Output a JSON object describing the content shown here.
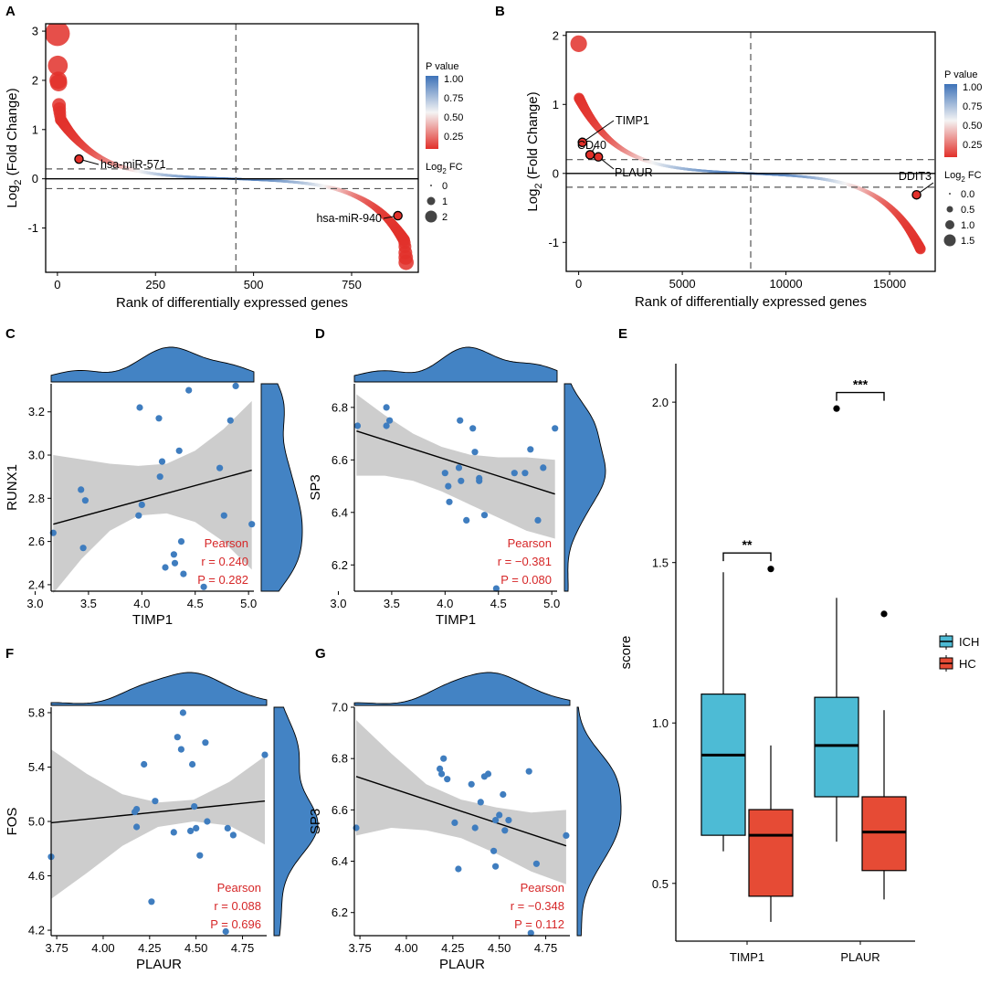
{
  "panels": {
    "A": {
      "label": "A"
    },
    "B": {
      "label": "B"
    },
    "C": {
      "label": "C"
    },
    "D": {
      "label": "D"
    },
    "E": {
      "label": "E"
    },
    "F": {
      "label": "F"
    },
    "G": {
      "label": "G"
    }
  },
  "colors": {
    "red": "#e2302a",
    "white": "#f4f4f4",
    "blue": "#3d72b8",
    "scatter_point": "#3f7dbf",
    "density_fill": "#4383c4",
    "ci_band": "#c8c8c8",
    "stat_text": "#d62728",
    "box_ich": "#4dbbd5",
    "box_hc": "#e64b35"
  },
  "chart_data": [
    {
      "id": "A",
      "type": "scatter",
      "title": "",
      "xlabel": "Rank of differentially expressed genes",
      "ylabel_main": "Log",
      "ylabel_sub": "2",
      "ylabel_tail": " (Fold Change)",
      "xlim": [
        -30,
        920
      ],
      "ylim": [
        -1.9,
        3.15
      ],
      "xticks": [
        0,
        250,
        500,
        750
      ],
      "yticks": [
        -1,
        0,
        1,
        2,
        3
      ],
      "hlines_dashed": [
        0.2,
        -0.2
      ],
      "hline_solid": 0,
      "vline_dashed": 455,
      "n_genes": 890,
      "top_values": [
        2.95,
        2.3,
        2.0,
        1.95,
        1.5,
        1.42,
        1.35,
        1.28,
        1.2
      ],
      "bottom_values": [
        -1.25,
        -1.3,
        -1.38,
        -1.5,
        -1.6,
        -1.7
      ],
      "highlight": [
        {
          "x": 55,
          "y": 0.4,
          "label": "hsa-miR-571"
        },
        {
          "x": 868,
          "y": -0.75,
          "label": "hsa-miR-940"
        }
      ],
      "legend": {
        "pvalue_title": "P value",
        "pvalue_ticks": [
          "1.00",
          "0.75",
          "0.50",
          "0.25"
        ],
        "fc_title_main": "Log",
        "fc_title_sub": "2",
        "fc_title_tail": " FC",
        "fc_sizes": [
          "0",
          "1",
          "2"
        ]
      }
    },
    {
      "id": "B",
      "type": "scatter",
      "title": "",
      "xlabel": "Rank of differentially expressed genes",
      "ylabel_main": "Log",
      "ylabel_sub": "2",
      "ylabel_tail": " (Fold Change)",
      "xlim": [
        -600,
        17200
      ],
      "ylim": [
        -1.42,
        2.05
      ],
      "xticks": [
        0,
        5000,
        10000,
        15000
      ],
      "yticks": [
        -1,
        0,
        1,
        2
      ],
      "hlines_dashed": [
        0.2,
        -0.2
      ],
      "hline_solid": 0,
      "vline_dashed": 8300,
      "n_genes": 16500,
      "top_values": [
        1.88,
        1.6,
        1.3,
        1.2,
        1.1
      ],
      "bottom_values": [
        -1.1,
        -1.18,
        -1.25,
        -1.3
      ],
      "highlight": [
        {
          "x": 180,
          "y": 0.45,
          "label": "TIMP1"
        },
        {
          "x": 550,
          "y": 0.27,
          "label": "CD40"
        },
        {
          "x": 950,
          "y": 0.24,
          "label": "PLAUR"
        },
        {
          "x": 16300,
          "y": -0.31,
          "label": "DDIT3"
        }
      ],
      "legend": {
        "pvalue_title": "P value",
        "pvalue_ticks": [
          "1.00",
          "0.75",
          "0.50",
          "0.25"
        ],
        "fc_title_main": "Log",
        "fc_title_sub": "2",
        "fc_title_tail": " FC",
        "fc_sizes": [
          "0.0",
          "0.5",
          "1.0",
          "1.5"
        ]
      }
    },
    {
      "id": "C",
      "type": "scatter",
      "xlabel": "TIMP1",
      "ylabel": "RUNX1",
      "xlim": [
        3.15,
        5.05
      ],
      "ylim": [
        2.37,
        3.33
      ],
      "xticks": [
        "3.0",
        "3.5",
        "4.0",
        "4.5",
        "5.0"
      ],
      "xtick_values": [
        3.0,
        3.5,
        4.0,
        4.5,
        5.0
      ],
      "yticks": [
        "2.4",
        "2.6",
        "2.8",
        "3.0",
        "3.2"
      ],
      "ytick_values": [
        2.4,
        2.6,
        2.8,
        3.0,
        3.2
      ],
      "points": [
        [
          3.17,
          2.64
        ],
        [
          3.43,
          2.84
        ],
        [
          3.47,
          2.79
        ],
        [
          3.45,
          2.57
        ],
        [
          3.98,
          3.22
        ],
        [
          3.97,
          2.72
        ],
        [
          4.0,
          2.77
        ],
        [
          4.16,
          3.17
        ],
        [
          4.17,
          2.9
        ],
        [
          4.19,
          2.97
        ],
        [
          4.3,
          2.54
        ],
        [
          4.35,
          3.02
        ],
        [
          4.22,
          2.48
        ],
        [
          4.31,
          2.5
        ],
        [
          4.37,
          2.6
        ],
        [
          4.44,
          3.3
        ],
        [
          4.58,
          2.39
        ],
        [
          4.39,
          2.45
        ],
        [
          4.73,
          2.94
        ],
        [
          4.77,
          2.72
        ],
        [
          4.83,
          3.16
        ],
        [
          4.88,
          3.32
        ],
        [
          5.03,
          2.68
        ]
      ],
      "fit": {
        "x": [
          3.17,
          5.03
        ],
        "y": [
          2.68,
          2.93
        ]
      },
      "ci_upper": [
        3.0,
        2.98,
        2.96,
        2.95,
        2.96,
        3.02,
        3.12,
        3.25
      ],
      "ci_lower": [
        2.36,
        2.52,
        2.65,
        2.72,
        2.73,
        2.69,
        2.6,
        2.47
      ],
      "stats": {
        "method": "Pearson",
        "r": "r = 0.240",
        "p": "P = 0.282"
      }
    },
    {
      "id": "D",
      "type": "scatter",
      "xlabel": "TIMP1",
      "ylabel": "SP3",
      "xlim": [
        3.15,
        5.05
      ],
      "ylim": [
        6.1,
        6.89
      ],
      "xticks": [
        "3.0",
        "3.5",
        "4.0",
        "4.5",
        "5.0"
      ],
      "xtick_values": [
        3.0,
        3.5,
        4.0,
        4.5,
        5.0
      ],
      "yticks": [
        "6.2",
        "6.4",
        "6.6",
        "6.8"
      ],
      "ytick_values": [
        6.2,
        6.4,
        6.6,
        6.8
      ],
      "points": [
        [
          3.18,
          6.73
        ],
        [
          3.45,
          6.8
        ],
        [
          3.48,
          6.75
        ],
        [
          3.45,
          6.73
        ],
        [
          4.0,
          6.55
        ],
        [
          4.03,
          6.5
        ],
        [
          4.04,
          6.44
        ],
        [
          4.13,
          6.57
        ],
        [
          4.15,
          6.52
        ],
        [
          4.14,
          6.75
        ],
        [
          4.2,
          6.37
        ],
        [
          4.26,
          6.72
        ],
        [
          4.28,
          6.63
        ],
        [
          4.32,
          6.53
        ],
        [
          4.37,
          6.39
        ],
        [
          4.32,
          6.52
        ],
        [
          4.48,
          6.11
        ],
        [
          4.65,
          6.55
        ],
        [
          4.8,
          6.64
        ],
        [
          4.75,
          6.55
        ],
        [
          4.87,
          6.37
        ],
        [
          4.92,
          6.57
        ],
        [
          5.03,
          6.72
        ]
      ],
      "fit": {
        "x": [
          3.17,
          5.03
        ],
        "y": [
          6.71,
          6.47
        ]
      },
      "ci_upper": [
        6.85,
        6.77,
        6.7,
        6.65,
        6.62,
        6.61,
        6.61,
        6.6
      ],
      "ci_lower": [
        6.54,
        6.54,
        6.52,
        6.48,
        6.43,
        6.38,
        6.33,
        6.3
      ],
      "stats": {
        "method": "Pearson",
        "r": "r = −0.381",
        "p": "P = 0.080"
      }
    },
    {
      "id": "F",
      "type": "scatter",
      "xlabel": "PLAUR",
      "ylabel": "FOS",
      "xlim": [
        3.72,
        4.88
      ],
      "ylim": [
        4.16,
        5.84
      ],
      "xticks": [
        "3.75",
        "4.00",
        "4.25",
        "4.50",
        "4.75"
      ],
      "xtick_values": [
        3.75,
        4.0,
        4.25,
        4.5,
        4.75
      ],
      "yticks": [
        "4.2",
        "4.6",
        "5.0",
        "5.4",
        "5.8"
      ],
      "ytick_values": [
        4.2,
        4.6,
        5.0,
        5.4,
        5.8
      ],
      "points": [
        [
          3.72,
          4.74
        ],
        [
          4.17,
          5.07
        ],
        [
          4.18,
          5.09
        ],
        [
          4.18,
          4.96
        ],
        [
          4.22,
          5.42
        ],
        [
          4.26,
          4.41
        ],
        [
          4.28,
          5.15
        ],
        [
          4.38,
          4.92
        ],
        [
          4.4,
          5.62
        ],
        [
          4.42,
          5.53
        ],
        [
          4.43,
          5.8
        ],
        [
          4.47,
          4.93
        ],
        [
          4.48,
          5.42
        ],
        [
          4.49,
          5.11
        ],
        [
          4.5,
          4.95
        ],
        [
          4.52,
          4.75
        ],
        [
          4.55,
          5.58
        ],
        [
          4.56,
          5.0
        ],
        [
          4.66,
          4.19
        ],
        [
          4.67,
          4.95
        ],
        [
          4.7,
          4.9
        ],
        [
          4.87,
          5.49
        ]
      ],
      "fit": {
        "x": [
          3.72,
          4.87
        ],
        "y": [
          4.99,
          5.15
        ]
      },
      "ci_upper": [
        5.53,
        5.35,
        5.2,
        5.14,
        5.16,
        5.29,
        5.48
      ],
      "ci_lower": [
        4.43,
        4.62,
        4.82,
        4.96,
        5.0,
        4.97,
        4.83
      ],
      "stats": {
        "method": "Pearson",
        "r": "r = 0.088",
        "p": "P = 0.696"
      }
    },
    {
      "id": "G",
      "type": "scatter",
      "xlabel": "PLAUR",
      "ylabel": "SP3",
      "xlim": [
        3.72,
        4.88
      ],
      "ylim": [
        6.11,
        7.0
      ],
      "xticks": [
        "3.75",
        "4.00",
        "4.25",
        "4.50",
        "4.75"
      ],
      "xtick_values": [
        3.75,
        4.0,
        4.25,
        4.5,
        4.75
      ],
      "yticks": [
        "6.2",
        "6.4",
        "6.6",
        "6.8",
        "7.0"
      ],
      "ytick_values": [
        6.2,
        6.4,
        6.6,
        6.8,
        7.0
      ],
      "points": [
        [
          3.73,
          6.53
        ],
        [
          4.18,
          6.76
        ],
        [
          4.19,
          6.74
        ],
        [
          4.2,
          6.8
        ],
        [
          4.22,
          6.72
        ],
        [
          4.26,
          6.55
        ],
        [
          4.28,
          6.37
        ],
        [
          4.35,
          6.7
        ],
        [
          4.37,
          6.53
        ],
        [
          4.4,
          6.63
        ],
        [
          4.42,
          6.73
        ],
        [
          4.44,
          6.74
        ],
        [
          4.47,
          6.44
        ],
        [
          4.48,
          6.56
        ],
        [
          4.48,
          6.38
        ],
        [
          4.5,
          6.58
        ],
        [
          4.52,
          6.66
        ],
        [
          4.53,
          6.52
        ],
        [
          4.55,
          6.56
        ],
        [
          4.66,
          6.75
        ],
        [
          4.67,
          6.12
        ],
        [
          4.7,
          6.39
        ],
        [
          4.86,
          6.5
        ]
      ],
      "fit": {
        "x": [
          3.73,
          4.86
        ],
        "y": [
          6.73,
          6.46
        ]
      },
      "ci_upper": [
        6.95,
        6.82,
        6.7,
        6.64,
        6.61,
        6.59,
        6.6
      ],
      "ci_lower": [
        6.5,
        6.53,
        6.52,
        6.49,
        6.43,
        6.36,
        6.31
      ],
      "stats": {
        "method": "Pearson",
        "r": "r = −0.348",
        "p": "P = 0.112"
      }
    },
    {
      "id": "E",
      "type": "box",
      "ylabel": "score",
      "ylim": [
        0.32,
        2.12
      ],
      "yticks": [
        "0.5",
        "1.0",
        "1.5",
        "2.0"
      ],
      "ytick_values": [
        0.5,
        1.0,
        1.5,
        2.0
      ],
      "categories": [
        "TIMP1",
        "PLAUR"
      ],
      "series": [
        {
          "name": "ICH",
          "color": "#4dbbd5",
          "boxes": [
            {
              "min": 0.6,
              "q1": 0.65,
              "median": 0.9,
              "q3": 1.09,
              "max": 1.47,
              "outliers": []
            },
            {
              "min": 0.63,
              "q1": 0.77,
              "median": 0.93,
              "q3": 1.08,
              "max": 1.39,
              "outliers": [
                1.98
              ]
            }
          ]
        },
        {
          "name": "HC",
          "color": "#e64b35",
          "boxes": [
            {
              "min": 0.38,
              "q1": 0.46,
              "median": 0.65,
              "q3": 0.73,
              "max": 0.93,
              "outliers": [
                1.48
              ]
            },
            {
              "min": 0.45,
              "q1": 0.54,
              "median": 0.66,
              "q3": 0.77,
              "max": 1.04,
              "outliers": [
                1.34
              ]
            }
          ]
        }
      ],
      "significance": [
        {
          "category": "TIMP1",
          "level": 1.53,
          "label": "**"
        },
        {
          "category": "PLAUR",
          "level": 2.03,
          "label": "***"
        }
      ]
    }
  ]
}
